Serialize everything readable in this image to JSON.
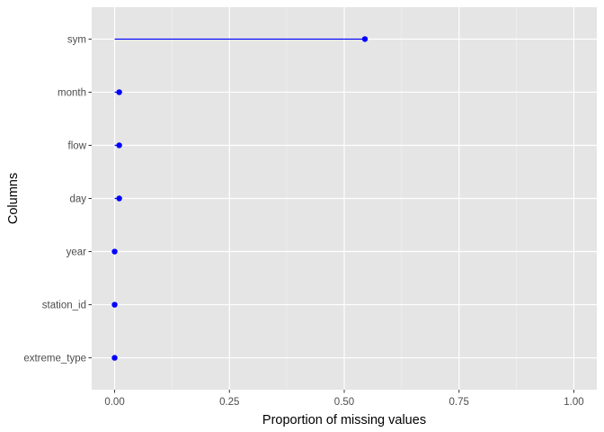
{
  "chart_data": {
    "type": "lollipop",
    "title": "",
    "xlabel": "Proportion of missing values",
    "ylabel": "Columns",
    "xlim": [
      -0.05,
      1.05
    ],
    "x_ticks": [
      0.0,
      0.25,
      0.5,
      0.75,
      1.0
    ],
    "x_tick_labels": [
      "0.00",
      "0.25",
      "0.50",
      "0.75",
      "1.00"
    ],
    "categories": [
      "sym",
      "month",
      "flow",
      "day",
      "year",
      "station_id",
      "extreme_type"
    ],
    "values": [
      0.545,
      0.01,
      0.01,
      0.01,
      0.0,
      0.0,
      0.0
    ],
    "grid": true,
    "colors": {
      "panel": "#e5e5e5",
      "grid_major": "#ffffff",
      "series": "#0000ff"
    }
  }
}
